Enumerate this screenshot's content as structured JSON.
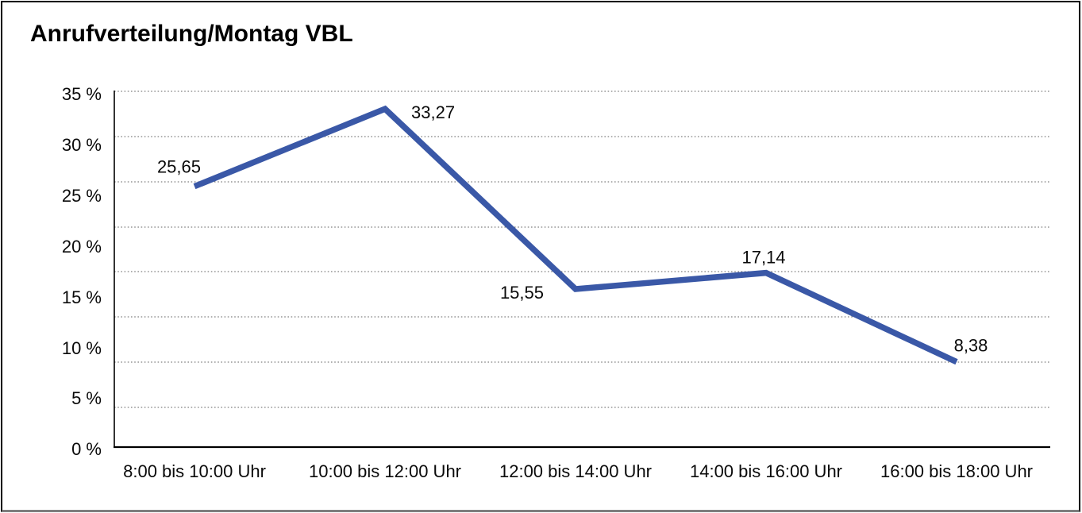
{
  "chart": {
    "title": "Anrufverteilung/Montag VBL"
  },
  "chart_data": {
    "type": "line",
    "title": "Anrufverteilung/Montag VBL",
    "categories": [
      "8:00 bis 10:00 Uhr",
      "10:00 bis 12:00 Uhr",
      "12:00 bis 14:00 Uhr",
      "14:00 bis 16:00 Uhr",
      "16:00 bis 18:00 Uhr"
    ],
    "values": [
      25.65,
      33.27,
      15.55,
      17.14,
      8.38
    ],
    "value_labels": [
      "25,65",
      "33,27",
      "15,55",
      "17,14",
      "8,38"
    ],
    "y_tick_labels": [
      "35 %",
      "30 %",
      "25 %",
      "20 %",
      "15 %",
      "10 %",
      "5 %",
      "0 %"
    ],
    "y_tick_values": [
      35,
      30,
      25,
      20,
      15,
      10,
      5,
      0
    ],
    "ylim": [
      0,
      35
    ],
    "y_tick_step": 5,
    "xlabel": "",
    "ylabel": "",
    "legend": "none",
    "grid": "horizontal-dotted",
    "line_color": "#3A58A7",
    "grid_color": "#606060",
    "axis_color": "#000000",
    "text_color": "#0a0a0a"
  }
}
